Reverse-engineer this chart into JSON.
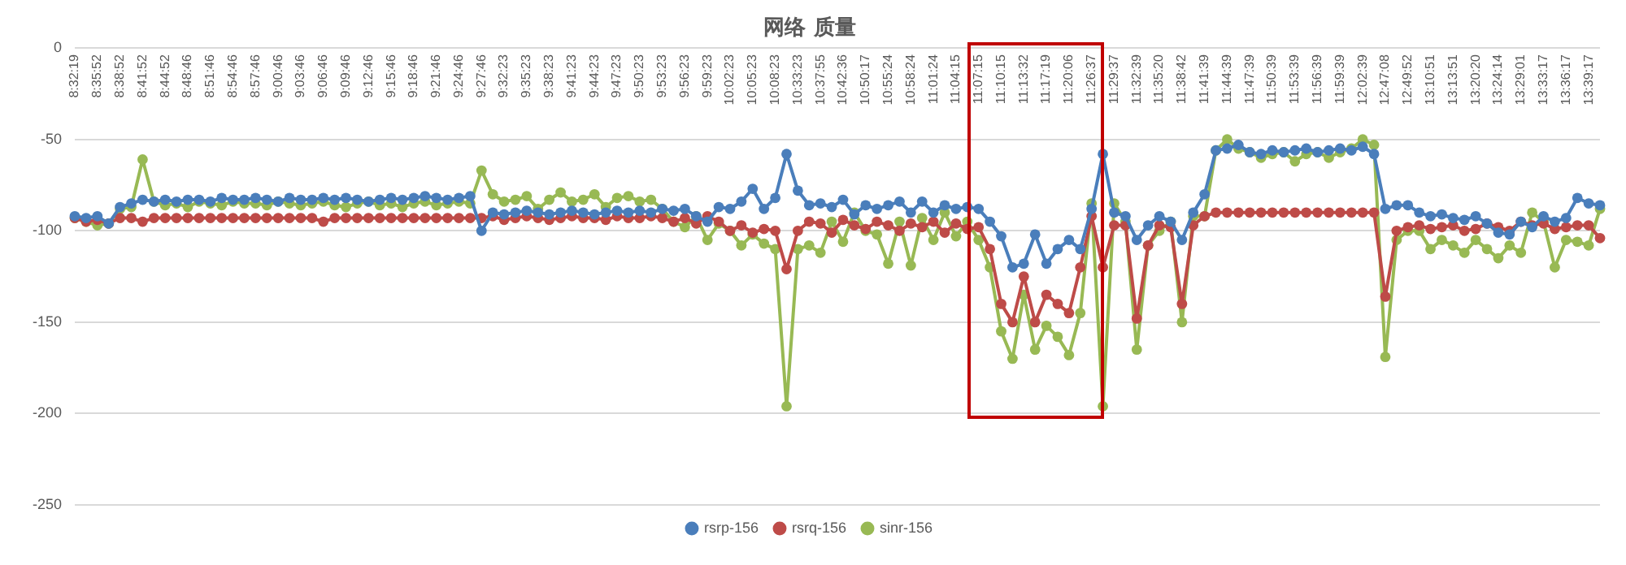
{
  "chart_data": {
    "type": "line",
    "title": "网络 质量",
    "categories": [
      "8:32:19",
      null,
      "8:35:52",
      null,
      "8:38:52",
      null,
      "8:41:52",
      null,
      "8:44:52",
      null,
      "8:48:46",
      null,
      "8:51:46",
      null,
      "8:54:46",
      null,
      "8:57:46",
      null,
      "9:00:46",
      null,
      "9:03:46",
      null,
      "9:06:46",
      null,
      "9:09:46",
      null,
      "9:12:46",
      null,
      "9:15:46",
      null,
      "9:18:46",
      null,
      "9:21:46",
      null,
      "9:24:46",
      null,
      "9:27:46",
      null,
      "9:32:23",
      null,
      "9:35:23",
      null,
      "9:38:23",
      null,
      "9:41:23",
      null,
      "9:44:23",
      null,
      "9:47:23",
      null,
      "9:50:23",
      null,
      "9:53:23",
      null,
      "9:56:23",
      null,
      "9:59:23",
      null,
      "10:02:23",
      null,
      "10:05:23",
      null,
      "10:08:23",
      null,
      "10:33:23",
      null,
      "10:37:55",
      null,
      "10:42:36",
      null,
      "10:50:17",
      null,
      "10:55:24",
      null,
      "10:58:24",
      null,
      "11:01:24",
      null,
      "11:04:15",
      null,
      "11:07:15",
      null,
      "11:10:15",
      null,
      "11:13:32",
      null,
      "11:17:19",
      null,
      "11:20:06",
      null,
      "11:26:37",
      null,
      "11:29:37",
      null,
      "11:32:39",
      null,
      "11:35:20",
      null,
      "11:38:42",
      null,
      "11:41:39",
      null,
      "11:44:39",
      null,
      "11:47:39",
      null,
      "11:50:39",
      null,
      "11:53:39",
      null,
      "11:56:39",
      null,
      "11:59:39",
      null,
      "12:02:39",
      null,
      "12:47:08",
      null,
      "12:49:52",
      null,
      "13:10:51",
      null,
      "13:13:51",
      null,
      "13:20:20",
      null,
      "13:24:14",
      null,
      "13:29:01",
      null,
      "13:33:17",
      null,
      "13:36:17",
      null,
      "13:39:17",
      null
    ],
    "series": [
      {
        "name": "rsrp-156",
        "color": "#4a7ebb",
        "values": [
          -92,
          -93,
          -92,
          -96,
          -87,
          -85,
          -83,
          -84,
          -83,
          -84,
          -83,
          -83,
          -84,
          -82,
          -83,
          -83,
          -82,
          -83,
          -84,
          -82,
          -83,
          -83,
          -82,
          -83,
          -82,
          -83,
          -84,
          -83,
          -82,
          -83,
          -82,
          -81,
          -82,
          -83,
          -82,
          -81,
          -100,
          -90,
          -91,
          -90,
          -89,
          -90,
          -91,
          -90,
          -89,
          -90,
          -91,
          -90,
          -89,
          -90,
          -89,
          -90,
          -88,
          -89,
          -88,
          -92,
          -95,
          -87,
          -88,
          -84,
          -77,
          -88,
          -82,
          -58,
          -78,
          -86,
          -85,
          -87,
          -83,
          -91,
          -86,
          -88,
          -86,
          -84,
          -90,
          -84,
          -90,
          -86,
          -88,
          -87,
          -88,
          -95,
          -103,
          -120,
          -118,
          -102,
          -118,
          -110,
          -105,
          -110,
          -88,
          -58,
          -90,
          -92,
          -105,
          -97,
          -92,
          -95,
          -105,
          -90,
          -80,
          -56,
          -55,
          -53,
          -57,
          -58,
          -56,
          -57,
          -56,
          -55,
          -57,
          -56,
          -55,
          -56,
          -54,
          -58,
          -88,
          -86,
          -86,
          -90,
          -92,
          -91,
          -93,
          -94,
          -92,
          -96,
          -101,
          -102,
          -95,
          -98,
          -92,
          -95,
          -93,
          -82,
          -85,
          -86
        ]
      },
      {
        "name": "rsrq-156",
        "color": "#be4b48",
        "values": [
          -93,
          -95,
          -94,
          -96,
          -93,
          -93,
          -95,
          -93,
          -93,
          -93,
          -93,
          -93,
          -93,
          -93,
          -93,
          -93,
          -93,
          -93,
          -93,
          -93,
          -93,
          -93,
          -95,
          -93,
          -93,
          -93,
          -93,
          -93,
          -93,
          -93,
          -93,
          -93,
          -93,
          -93,
          -93,
          -93,
          -93,
          -92,
          -94,
          -93,
          -92,
          -93,
          -94,
          -93,
          -92,
          -93,
          -93,
          -94,
          -92,
          -93,
          -93,
          -92,
          -93,
          -95,
          -93,
          -96,
          -92,
          -95,
          -100,
          -97,
          -101,
          -99,
          -100,
          -121,
          -100,
          -95,
          -96,
          -101,
          -94,
          -97,
          -99,
          -95,
          -97,
          -100,
          -96,
          -98,
          -95,
          -101,
          -96,
          -99,
          -98,
          -110,
          -140,
          -150,
          -125,
          -150,
          -135,
          -140,
          -145,
          -120,
          -92,
          -120,
          -97,
          -97,
          -148,
          -108,
          -97,
          -98,
          -140,
          -97,
          -92,
          -90,
          -90,
          -90,
          -90,
          -90,
          -90,
          -90,
          -90,
          -90,
          -90,
          -90,
          -90,
          -90,
          -90,
          -90,
          -136,
          -100,
          -98,
          -97,
          -99,
          -98,
          -97,
          -100,
          -99,
          -96,
          -98,
          -100,
          -95,
          -97,
          -96,
          -99,
          -98,
          -97,
          -97,
          -104
        ]
      },
      {
        "name": "sinr-156",
        "color": "#98b954",
        "values": [
          -93,
          -95,
          -97,
          -96,
          -88,
          -87,
          -61,
          -84,
          -86,
          -85,
          -87,
          -84,
          -85,
          -86,
          -84,
          -85,
          -85,
          -86,
          -84,
          -85,
          -86,
          -85,
          -84,
          -86,
          -87,
          -85,
          -84,
          -86,
          -85,
          -87,
          -85,
          -84,
          -86,
          -85,
          -84,
          -85,
          -67,
          -80,
          -84,
          -83,
          -81,
          -88,
          -83,
          -79,
          -84,
          -83,
          -80,
          -87,
          -82,
          -81,
          -84,
          -83,
          -88,
          -95,
          -98,
          -92,
          -105,
          -96,
          -100,
          -108,
          -102,
          -107,
          -110,
          -196,
          -110,
          -108,
          -112,
          -95,
          -106,
          -90,
          -100,
          -102,
          -118,
          -95,
          -119,
          -93,
          -105,
          -90,
          -103,
          -95,
          -105,
          -120,
          -155,
          -170,
          -135,
          -165,
          -152,
          -158,
          -168,
          -145,
          -85,
          -196,
          -85,
          -95,
          -165,
          -108,
          -100,
          -95,
          -150,
          -92,
          -92,
          -56,
          -50,
          -55,
          -57,
          -60,
          -58,
          -57,
          -62,
          -58,
          -57,
          -60,
          -57,
          -55,
          -50,
          -53,
          -169,
          -105,
          -100,
          -100,
          -110,
          -105,
          -108,
          -112,
          -105,
          -110,
          -115,
          -108,
          -112,
          -90,
          -95,
          -120,
          -105,
          -106,
          -108,
          -88
        ]
      }
    ],
    "ylim": [
      -250,
      0
    ],
    "yticks": [
      -250,
      -200,
      -150,
      -100,
      -50,
      0
    ],
    "grid": "y",
    "legend": "bottom",
    "marker": "circle",
    "line_style": "solid"
  }
}
